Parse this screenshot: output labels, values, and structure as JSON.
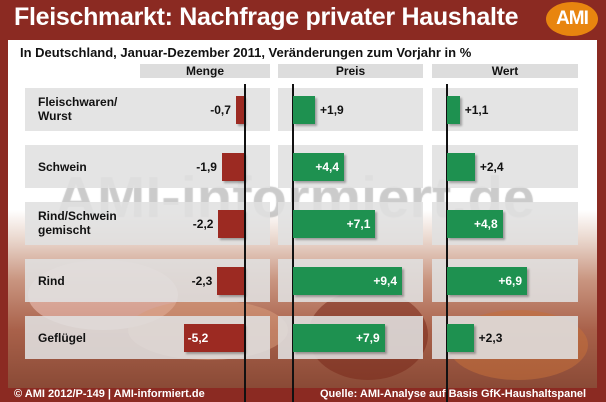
{
  "header": {
    "title": "Fleischmarkt: Nachfrage privater Haushalte",
    "logo": "AMI"
  },
  "watermark": "AMI-informiert.de",
  "footer": {
    "copyright": "© AMI 2012/P-149 | AMI-informiert.de",
    "source": "Quelle: AMI-Analyse auf Basis GfK-Haushaltspanel"
  },
  "colors": {
    "negative": "#9c2a22",
    "positive": "#1e9150",
    "frame": "#8b2a22",
    "logo": "#e8850f"
  },
  "chart_data": {
    "type": "bar",
    "title": "Fleischmarkt: Nachfrage privater Haushalte",
    "subtitle": "In Deutschland, Januar-Dezember 2011, Veränderungen zum Vorjahr in %",
    "categories": [
      "Fleischwaren/ Wurst",
      "Schwein",
      "Rind/Schwein gemischt",
      "Rind",
      "Geflügel"
    ],
    "series": [
      {
        "name": "Menge",
        "values": [
          -0.7,
          -1.9,
          -2.2,
          -2.3,
          -5.2
        ],
        "labels": [
          "-0,7",
          "-1,9",
          "-2,2",
          "-2,3",
          "-5,2"
        ]
      },
      {
        "name": "Preis",
        "values": [
          1.9,
          4.4,
          7.1,
          9.4,
          7.9
        ],
        "labels": [
          "+1,9",
          "+4,4",
          "+7,1",
          "+9,4",
          "+7,9"
        ]
      },
      {
        "name": "Wert",
        "values": [
          1.1,
          2.4,
          4.8,
          6.9,
          2.3
        ],
        "labels": [
          "+1,1",
          "+2,4",
          "+4,8",
          "+6,9",
          "+2,3"
        ]
      }
    ],
    "unit": "%"
  }
}
